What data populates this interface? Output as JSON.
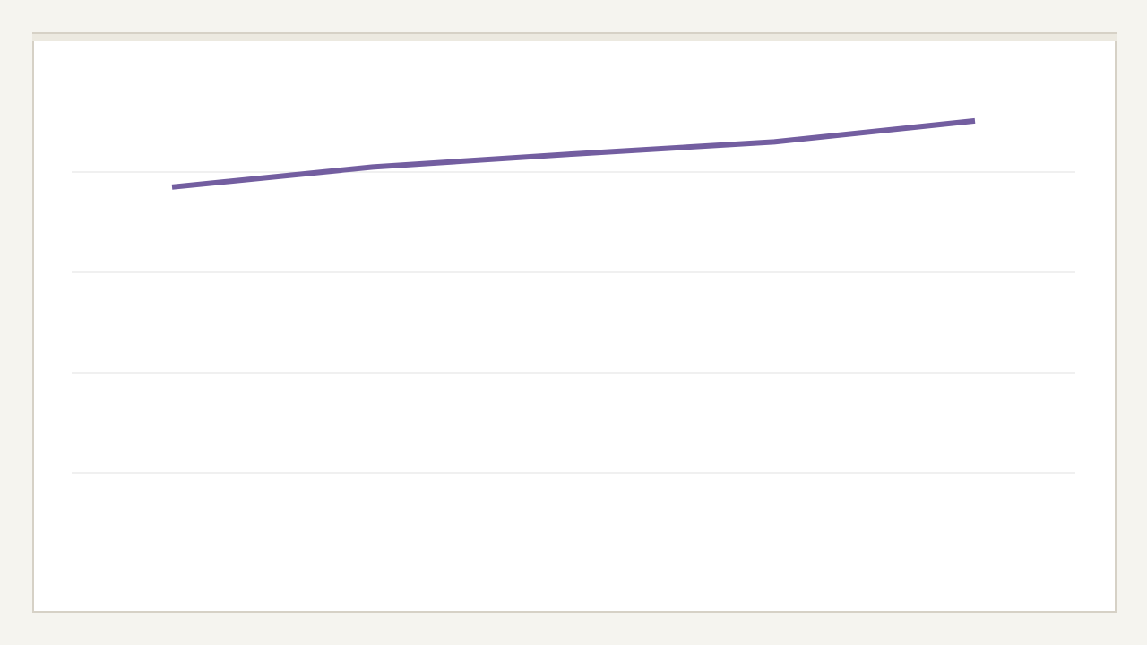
{
  "chart_data": {
    "type": "line",
    "categories": [
      null,
      null,
      null,
      null,
      null
    ],
    "values": [
      3.85,
      4.05,
      4.18,
      4.3,
      4.51
    ],
    "color": "#735ea0",
    "ylim": [
      0,
      5
    ],
    "yticks": [
      1,
      2,
      3,
      4
    ],
    "grid": true
  }
}
